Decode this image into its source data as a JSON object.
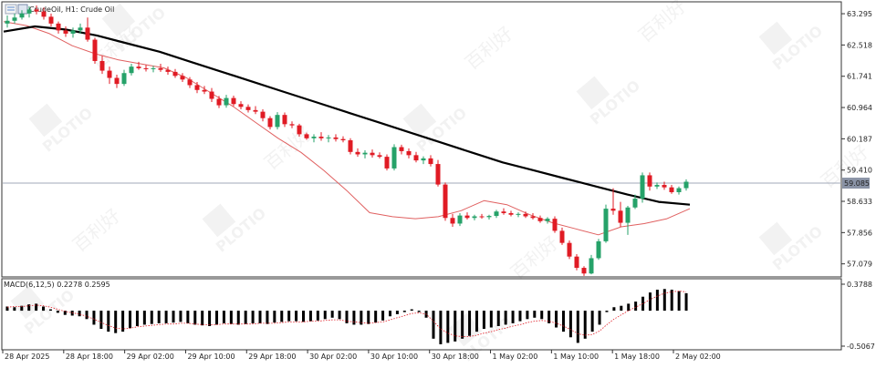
{
  "header": {
    "symbol_label": "CrudeOil, H1:  Crude Oil"
  },
  "indicator": {
    "label": "MACD(6,12,5) 0.2278 0.2595"
  },
  "chart_data": [
    {
      "type": "candlestick",
      "title": "CrudeOil, H1:  Crude Oil",
      "price_ticks": [
        "63.295",
        "62.518",
        "61.741",
        "60.964",
        "60.187",
        "59.410",
        "58.633",
        "57.856",
        "57.079"
      ],
      "current_price_label": "59.085",
      "ylim": [
        56.8,
        63.5
      ],
      "x_labels": [
        "28 Apr 2025",
        "28 Apr 18:00",
        "29 Apr 02:00",
        "29 Apr 10:00",
        "29 Apr 18:00",
        "30 Apr 02:00",
        "30 Apr 10:00",
        "30 Apr 18:00",
        "1 May 02:00",
        "1 May 10:00",
        "1 May 18:00",
        "2 May 02:00"
      ],
      "candles": [
        {
          "o": 63.05,
          "h": 63.25,
          "l": 62.95,
          "c": 63.12
        },
        {
          "o": 63.12,
          "h": 63.3,
          "l": 63.05,
          "c": 63.2
        },
        {
          "o": 63.2,
          "h": 63.38,
          "l": 63.15,
          "c": 63.3
        },
        {
          "o": 63.3,
          "h": 63.48,
          "l": 63.2,
          "c": 63.4
        },
        {
          "o": 63.4,
          "h": 63.5,
          "l": 63.28,
          "c": 63.35
        },
        {
          "o": 63.35,
          "h": 63.45,
          "l": 63.15,
          "c": 63.22
        },
        {
          "o": 63.22,
          "h": 63.3,
          "l": 62.98,
          "c": 63.05
        },
        {
          "o": 63.05,
          "h": 63.1,
          "l": 62.8,
          "c": 62.88
        },
        {
          "o": 62.88,
          "h": 62.98,
          "l": 62.72,
          "c": 62.8
        },
        {
          "o": 62.8,
          "h": 62.95,
          "l": 62.7,
          "c": 62.88
        },
        {
          "o": 62.88,
          "h": 63.05,
          "l": 62.8,
          "c": 62.95
        },
        {
          "o": 62.95,
          "h": 63.2,
          "l": 62.6,
          "c": 62.65
        },
        {
          "o": 62.65,
          "h": 62.7,
          "l": 62.05,
          "c": 62.12
        },
        {
          "o": 62.12,
          "h": 62.25,
          "l": 61.8,
          "c": 61.88
        },
        {
          "o": 61.88,
          "h": 61.98,
          "l": 61.55,
          "c": 61.7
        },
        {
          "o": 61.7,
          "h": 61.78,
          "l": 61.45,
          "c": 61.55
        },
        {
          "o": 61.55,
          "h": 61.9,
          "l": 61.5,
          "c": 61.82
        },
        {
          "o": 61.82,
          "h": 62.05,
          "l": 61.76,
          "c": 61.98
        },
        {
          "o": 61.98,
          "h": 62.1,
          "l": 61.9,
          "c": 61.94
        },
        {
          "o": 61.94,
          "h": 62.02,
          "l": 61.86,
          "c": 61.92
        },
        {
          "o": 61.92,
          "h": 62.0,
          "l": 61.84,
          "c": 61.94
        },
        {
          "o": 61.94,
          "h": 62.05,
          "l": 61.85,
          "c": 61.9
        },
        {
          "o": 61.9,
          "h": 61.98,
          "l": 61.78,
          "c": 61.85
        },
        {
          "o": 61.85,
          "h": 61.92,
          "l": 61.7,
          "c": 61.75
        },
        {
          "o": 61.75,
          "h": 61.82,
          "l": 61.6,
          "c": 61.66
        },
        {
          "o": 61.66,
          "h": 61.72,
          "l": 61.45,
          "c": 61.52
        },
        {
          "o": 61.52,
          "h": 61.6,
          "l": 61.32,
          "c": 61.4
        },
        {
          "o": 61.4,
          "h": 61.5,
          "l": 61.3,
          "c": 61.36
        },
        {
          "o": 61.36,
          "h": 61.45,
          "l": 61.1,
          "c": 61.18
        },
        {
          "o": 61.18,
          "h": 61.25,
          "l": 60.95,
          "c": 61.02
        },
        {
          "o": 61.02,
          "h": 61.28,
          "l": 60.96,
          "c": 61.2
        },
        {
          "o": 61.2,
          "h": 61.26,
          "l": 61.0,
          "c": 61.05
        },
        {
          "o": 61.05,
          "h": 61.12,
          "l": 60.92,
          "c": 60.98
        },
        {
          "o": 60.98,
          "h": 61.04,
          "l": 60.84,
          "c": 60.9
        },
        {
          "o": 60.9,
          "h": 61.0,
          "l": 60.8,
          "c": 60.86
        },
        {
          "o": 60.86,
          "h": 60.92,
          "l": 60.62,
          "c": 60.7
        },
        {
          "o": 60.7,
          "h": 60.75,
          "l": 60.42,
          "c": 60.48
        },
        {
          "o": 60.48,
          "h": 60.85,
          "l": 60.42,
          "c": 60.78
        },
        {
          "o": 60.78,
          "h": 60.84,
          "l": 60.48,
          "c": 60.55
        },
        {
          "o": 60.55,
          "h": 60.62,
          "l": 60.45,
          "c": 60.52
        },
        {
          "o": 60.52,
          "h": 60.56,
          "l": 60.24,
          "c": 60.3
        },
        {
          "o": 60.3,
          "h": 60.34,
          "l": 60.16,
          "c": 60.2
        },
        {
          "o": 60.2,
          "h": 60.3,
          "l": 60.1,
          "c": 60.24
        },
        {
          "o": 60.24,
          "h": 60.35,
          "l": 60.14,
          "c": 60.2
        },
        {
          "o": 60.2,
          "h": 60.28,
          "l": 60.1,
          "c": 60.22
        },
        {
          "o": 60.22,
          "h": 60.3,
          "l": 60.12,
          "c": 60.18
        },
        {
          "o": 60.18,
          "h": 60.25,
          "l": 60.1,
          "c": 60.15
        },
        {
          "o": 60.15,
          "h": 60.2,
          "l": 59.8,
          "c": 59.86
        },
        {
          "o": 59.86,
          "h": 59.95,
          "l": 59.74,
          "c": 59.8
        },
        {
          "o": 59.8,
          "h": 59.9,
          "l": 59.7,
          "c": 59.84
        },
        {
          "o": 59.84,
          "h": 59.92,
          "l": 59.72,
          "c": 59.78
        },
        {
          "o": 59.78,
          "h": 59.85,
          "l": 59.7,
          "c": 59.74
        },
        {
          "o": 59.74,
          "h": 59.8,
          "l": 59.4,
          "c": 59.45
        },
        {
          "o": 59.45,
          "h": 60.05,
          "l": 59.4,
          "c": 59.98
        },
        {
          "o": 59.98,
          "h": 60.04,
          "l": 59.8,
          "c": 59.88
        },
        {
          "o": 59.88,
          "h": 59.95,
          "l": 59.7,
          "c": 59.78
        },
        {
          "o": 59.78,
          "h": 59.86,
          "l": 59.6,
          "c": 59.65
        },
        {
          "o": 59.65,
          "h": 59.75,
          "l": 59.56,
          "c": 59.7
        },
        {
          "o": 59.7,
          "h": 59.78,
          "l": 59.5,
          "c": 59.56
        },
        {
          "o": 59.56,
          "h": 59.66,
          "l": 59.0,
          "c": 59.05
        },
        {
          "o": 59.05,
          "h": 59.1,
          "l": 58.15,
          "c": 58.22
        },
        {
          "o": 58.22,
          "h": 58.32,
          "l": 58.0,
          "c": 58.08
        },
        {
          "o": 58.08,
          "h": 58.34,
          "l": 58.02,
          "c": 58.28
        },
        {
          "o": 58.28,
          "h": 58.36,
          "l": 58.18,
          "c": 58.22
        },
        {
          "o": 58.22,
          "h": 58.3,
          "l": 58.16,
          "c": 58.26
        },
        {
          "o": 58.26,
          "h": 58.32,
          "l": 58.2,
          "c": 58.24
        },
        {
          "o": 58.24,
          "h": 58.3,
          "l": 58.18,
          "c": 58.27
        },
        {
          "o": 58.27,
          "h": 58.42,
          "l": 58.22,
          "c": 58.38
        },
        {
          "o": 58.38,
          "h": 58.46,
          "l": 58.3,
          "c": 58.34
        },
        {
          "o": 58.34,
          "h": 58.4,
          "l": 58.26,
          "c": 58.3
        },
        {
          "o": 58.3,
          "h": 58.36,
          "l": 58.24,
          "c": 58.32
        },
        {
          "o": 58.32,
          "h": 58.38,
          "l": 58.22,
          "c": 58.26
        },
        {
          "o": 58.26,
          "h": 58.34,
          "l": 58.18,
          "c": 58.22
        },
        {
          "o": 58.22,
          "h": 58.28,
          "l": 58.1,
          "c": 58.14
        },
        {
          "o": 58.14,
          "h": 58.24,
          "l": 58.08,
          "c": 58.2
        },
        {
          "o": 58.2,
          "h": 58.26,
          "l": 57.85,
          "c": 57.9
        },
        {
          "o": 57.9,
          "h": 57.98,
          "l": 57.55,
          "c": 57.6
        },
        {
          "o": 57.6,
          "h": 57.66,
          "l": 57.2,
          "c": 57.26
        },
        {
          "o": 57.26,
          "h": 57.32,
          "l": 56.92,
          "c": 56.98
        },
        {
          "o": 56.98,
          "h": 57.02,
          "l": 56.78,
          "c": 56.84
        },
        {
          "o": 56.84,
          "h": 57.3,
          "l": 56.82,
          "c": 57.22
        },
        {
          "o": 57.22,
          "h": 57.7,
          "l": 57.18,
          "c": 57.64
        },
        {
          "o": 57.64,
          "h": 58.55,
          "l": 57.6,
          "c": 58.45
        },
        {
          "o": 58.45,
          "h": 58.96,
          "l": 58.3,
          "c": 58.4
        },
        {
          "o": 58.4,
          "h": 58.62,
          "l": 58.0,
          "c": 58.1
        },
        {
          "o": 58.1,
          "h": 58.52,
          "l": 57.8,
          "c": 58.48
        },
        {
          "o": 58.48,
          "h": 58.8,
          "l": 58.44,
          "c": 58.7
        },
        {
          "o": 58.7,
          "h": 59.35,
          "l": 58.6,
          "c": 59.28
        },
        {
          "o": 59.28,
          "h": 59.35,
          "l": 58.9,
          "c": 59.0
        },
        {
          "o": 59.0,
          "h": 59.1,
          "l": 58.94,
          "c": 59.04
        },
        {
          "o": 59.04,
          "h": 59.12,
          "l": 58.92,
          "c": 58.98
        },
        {
          "o": 58.98,
          "h": 59.04,
          "l": 58.82,
          "c": 58.86
        },
        {
          "o": 58.86,
          "h": 59.0,
          "l": 58.8,
          "c": 58.96
        },
        {
          "o": 58.96,
          "h": 59.18,
          "l": 58.9,
          "c": 59.12
        }
      ],
      "ma_fast": [
        63.1,
        63.0,
        62.8,
        62.5,
        62.3,
        62.15,
        62.05,
        61.95,
        61.7,
        61.35,
        61.0,
        60.6,
        60.2,
        59.85,
        59.4,
        58.9,
        58.35,
        58.25,
        58.2,
        58.25,
        58.4,
        58.65,
        58.55,
        58.3,
        58.1,
        57.95,
        57.8,
        58.0,
        58.08,
        58.2,
        58.45
      ],
      "ma_slow": [
        62.85,
        62.98,
        62.9,
        62.75,
        62.55,
        62.35,
        62.1,
        61.85,
        61.6,
        61.35,
        61.1,
        60.85,
        60.6,
        60.35,
        60.1,
        59.85,
        59.6,
        59.4,
        59.2,
        59.0,
        58.8,
        58.62,
        58.55
      ],
      "macd": {
        "label": "MACD(6,12,5)",
        "values": [
          0.2278,
          0.2595
        ],
        "ticks": [
          "0.3788",
          "-0.5067"
        ],
        "histogram": [
          0.06,
          0.05,
          0.07,
          0.09,
          0.1,
          0.06,
          0.02,
          -0.03,
          -0.06,
          -0.07,
          -0.08,
          -0.12,
          -0.2,
          -0.26,
          -0.3,
          -0.32,
          -0.3,
          -0.25,
          -0.22,
          -0.2,
          -0.19,
          -0.18,
          -0.18,
          -0.17,
          -0.16,
          -0.18,
          -0.2,
          -0.21,
          -0.22,
          -0.2,
          -0.18,
          -0.19,
          -0.2,
          -0.19,
          -0.18,
          -0.18,
          -0.19,
          -0.17,
          -0.16,
          -0.15,
          -0.15,
          -0.16,
          -0.15,
          -0.14,
          -0.12,
          -0.1,
          -0.12,
          -0.18,
          -0.2,
          -0.2,
          -0.19,
          -0.17,
          -0.14,
          -0.08,
          -0.05,
          -0.02,
          0.02,
          -0.02,
          -0.1,
          -0.4,
          -0.48,
          -0.46,
          -0.44,
          -0.4,
          -0.36,
          -0.3,
          -0.26,
          -0.24,
          -0.22,
          -0.2,
          -0.18,
          -0.15,
          -0.12,
          -0.1,
          -0.12,
          -0.18,
          -0.24,
          -0.3,
          -0.38,
          -0.46,
          -0.4,
          -0.3,
          -0.2,
          -0.02,
          0.05,
          0.07,
          0.1,
          0.13,
          0.2,
          0.26,
          0.3,
          0.31,
          0.3,
          0.28,
          0.25
        ],
        "signal": [
          0.05,
          0.06,
          0.06,
          0.07,
          0.08,
          0.07,
          0.05,
          0.02,
          -0.01,
          -0.03,
          -0.05,
          -0.08,
          -0.12,
          -0.17,
          -0.21,
          -0.25,
          -0.26,
          -0.25,
          -0.23,
          -0.22,
          -0.21,
          -0.2,
          -0.19,
          -0.19,
          -0.18,
          -0.18,
          -0.19,
          -0.2,
          -0.2,
          -0.2,
          -0.19,
          -0.19,
          -0.19,
          -0.19,
          -0.19,
          -0.18,
          -0.18,
          -0.18,
          -0.17,
          -0.16,
          -0.16,
          -0.16,
          -0.15,
          -0.15,
          -0.14,
          -0.13,
          -0.13,
          -0.15,
          -0.16,
          -0.17,
          -0.18,
          -0.17,
          -0.16,
          -0.13,
          -0.1,
          -0.07,
          -0.04,
          -0.03,
          -0.05,
          -0.15,
          -0.26,
          -0.32,
          -0.36,
          -0.37,
          -0.37,
          -0.35,
          -0.32,
          -0.3,
          -0.27,
          -0.25,
          -0.22,
          -0.2,
          -0.17,
          -0.15,
          -0.14,
          -0.15,
          -0.18,
          -0.22,
          -0.27,
          -0.33,
          -0.35,
          -0.34,
          -0.29,
          -0.2,
          -0.12,
          -0.06,
          0.0,
          0.05,
          0.1,
          0.16,
          0.21,
          0.25,
          0.27,
          0.28,
          0.27
        ]
      }
    }
  ],
  "watermark": {
    "brand": "PLOTIO",
    "cjk": "百利好"
  },
  "colors": {
    "bull": "#26a269",
    "bear": "#e01b24",
    "ma_slow": "#000000",
    "ma_fast": "#e06060",
    "signal": "#e01b24",
    "histogram": "#000000",
    "price_line": "#a0a8b8",
    "price_badge": "#8a93a6",
    "watermark": "#e8e8e8"
  }
}
